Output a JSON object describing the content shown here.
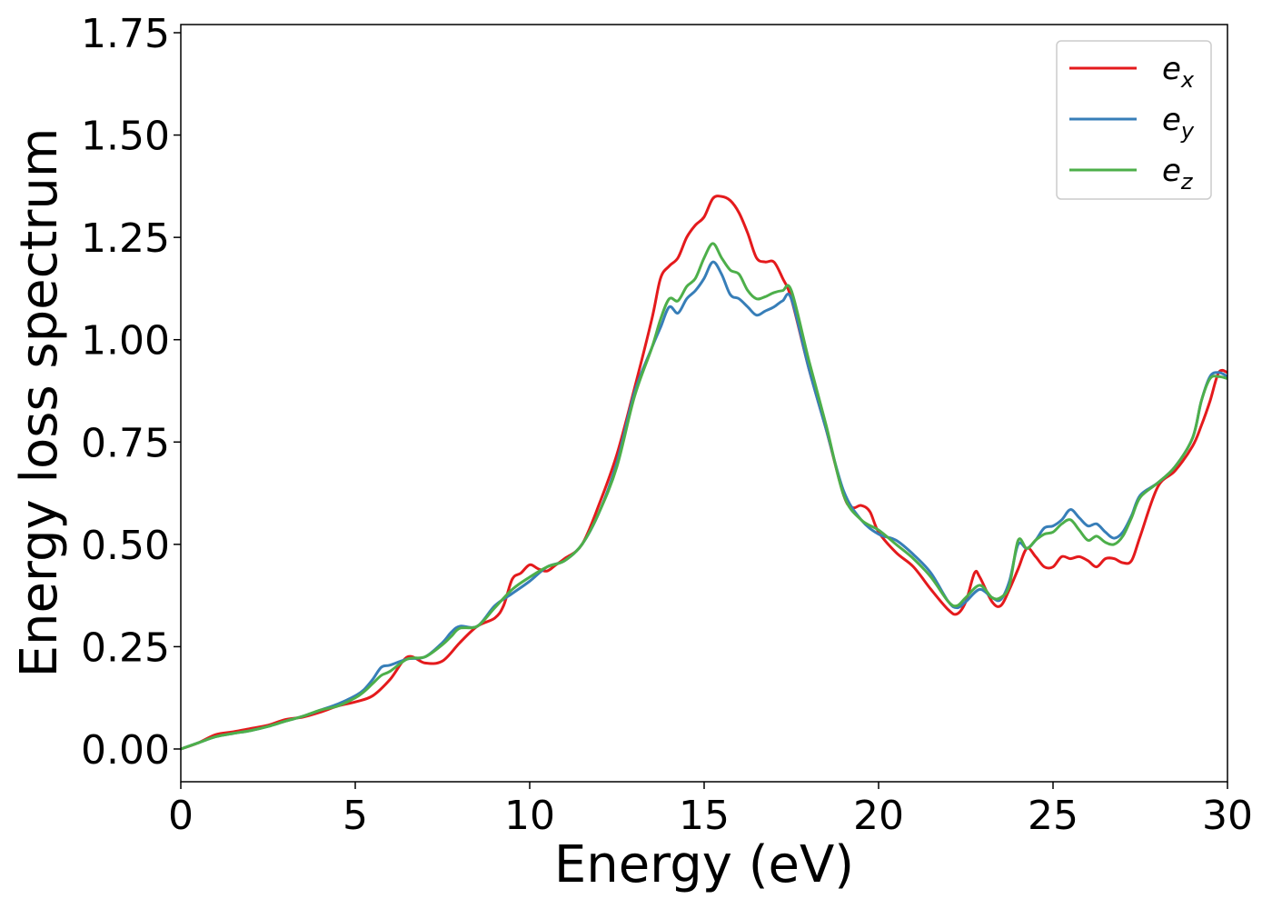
{
  "chart_data": {
    "type": "line",
    "title": "",
    "xlabel": "Energy (eV)",
    "ylabel": "Energy loss spectrum",
    "xlim": [
      0,
      30
    ],
    "ylim": [
      -0.08,
      1.77
    ],
    "xticks": [
      0,
      5,
      10,
      15,
      20,
      25,
      30
    ],
    "xtick_labels": [
      "0",
      "5",
      "10",
      "15",
      "20",
      "25",
      "30"
    ],
    "yticks": [
      0,
      0.25,
      0.5,
      0.75,
      1.0,
      1.25,
      1.5,
      1.75
    ],
    "ytick_labels": [
      "0.00",
      "0.25",
      "0.50",
      "0.75",
      "1.00",
      "1.25",
      "1.50",
      "1.75"
    ],
    "grid": false,
    "legend_position": "top-right",
    "series": [
      {
        "name": "e_x",
        "label_base": "e",
        "label_sub": "x",
        "color": "#e41a1c",
        "x": [
          0,
          0.5,
          1,
          1.5,
          2,
          2.5,
          3,
          3.5,
          4,
          4.5,
          5,
          5.5,
          6,
          6.5,
          7,
          7.5,
          8,
          8.5,
          9,
          9.25,
          9.5,
          9.75,
          10,
          10.25,
          10.5,
          10.75,
          11,
          11.5,
          12,
          12.5,
          13,
          13.5,
          13.75,
          14,
          14.25,
          14.5,
          14.75,
          15,
          15.25,
          15.5,
          15.75,
          16,
          16.25,
          16.5,
          16.75,
          17,
          17.25,
          17.5,
          18,
          18.5,
          19,
          19.25,
          19.5,
          19.75,
          20,
          20.5,
          21,
          21.5,
          22,
          22.25,
          22.5,
          22.75,
          22.9,
          23.25,
          23.5,
          23.75,
          24,
          24.25,
          24.5,
          24.75,
          25,
          25.25,
          25.5,
          25.75,
          26,
          26.25,
          26.5,
          26.75,
          27,
          27.25,
          27.5,
          28,
          28.5,
          29,
          29.25,
          29.5,
          29.75,
          30
        ],
        "values": [
          0,
          0.015,
          0.035,
          0.042,
          0.05,
          0.058,
          0.072,
          0.078,
          0.09,
          0.105,
          0.115,
          0.13,
          0.17,
          0.225,
          0.21,
          0.215,
          0.26,
          0.3,
          0.32,
          0.35,
          0.415,
          0.43,
          0.45,
          0.44,
          0.435,
          0.45,
          0.465,
          0.5,
          0.6,
          0.72,
          0.88,
          1.05,
          1.15,
          1.18,
          1.2,
          1.25,
          1.28,
          1.3,
          1.345,
          1.35,
          1.34,
          1.31,
          1.26,
          1.2,
          1.19,
          1.19,
          1.15,
          1.1,
          0.93,
          0.78,
          0.62,
          0.59,
          0.595,
          0.58,
          0.53,
          0.48,
          0.445,
          0.39,
          0.34,
          0.33,
          0.36,
          0.43,
          0.42,
          0.36,
          0.35,
          0.39,
          0.44,
          0.49,
          0.47,
          0.445,
          0.445,
          0.47,
          0.465,
          0.47,
          0.46,
          0.445,
          0.465,
          0.465,
          0.455,
          0.46,
          0.52,
          0.64,
          0.68,
          0.74,
          0.79,
          0.85,
          0.92,
          0.92
        ]
      },
      {
        "name": "e_y",
        "label_base": "e",
        "label_sub": "y",
        "color": "#377eb8",
        "x": [
          0,
          0.5,
          1,
          1.5,
          2,
          2.5,
          3,
          3.5,
          4,
          4.5,
          5,
          5.25,
          5.5,
          5.75,
          6,
          6.5,
          7,
          7.5,
          7.75,
          8,
          8.5,
          9,
          9.5,
          10,
          10.5,
          11,
          11.5,
          12,
          12.5,
          13,
          13.5,
          13.75,
          14,
          14.25,
          14.5,
          14.75,
          15,
          15.25,
          15.5,
          15.75,
          16,
          16.25,
          16.5,
          16.75,
          17,
          17.25,
          17.5,
          18,
          18.5,
          19,
          19.5,
          20,
          20.5,
          21,
          21.5,
          22,
          22.25,
          22.5,
          22.9,
          23.25,
          23.5,
          23.75,
          24,
          24.25,
          24.5,
          24.75,
          25,
          25.25,
          25.5,
          25.75,
          26,
          26.25,
          26.5,
          26.75,
          27,
          27.25,
          27.5,
          28,
          28.5,
          29,
          29.25,
          29.5,
          29.75,
          30
        ],
        "values": [
          0,
          0.015,
          0.03,
          0.038,
          0.045,
          0.055,
          0.068,
          0.08,
          0.095,
          0.11,
          0.13,
          0.145,
          0.17,
          0.2,
          0.205,
          0.22,
          0.225,
          0.26,
          0.285,
          0.3,
          0.3,
          0.35,
          0.38,
          0.41,
          0.445,
          0.46,
          0.5,
          0.58,
          0.7,
          0.87,
          0.98,
          1.03,
          1.08,
          1.065,
          1.1,
          1.12,
          1.15,
          1.19,
          1.16,
          1.11,
          1.1,
          1.08,
          1.06,
          1.07,
          1.08,
          1.095,
          1.1,
          0.93,
          0.78,
          0.63,
          0.56,
          0.525,
          0.51,
          0.475,
          0.43,
          0.36,
          0.345,
          0.36,
          0.39,
          0.37,
          0.365,
          0.41,
          0.5,
          0.49,
          0.51,
          0.54,
          0.545,
          0.56,
          0.585,
          0.565,
          0.545,
          0.55,
          0.53,
          0.515,
          0.53,
          0.57,
          0.62,
          0.65,
          0.69,
          0.76,
          0.85,
          0.91,
          0.92,
          0.91
        ]
      },
      {
        "name": "e_z",
        "label_base": "e",
        "label_sub": "z",
        "color": "#4daf4a",
        "x": [
          0,
          0.5,
          1,
          1.5,
          2,
          2.5,
          3,
          3.5,
          4,
          4.5,
          5,
          5.25,
          5.5,
          5.75,
          6,
          6.5,
          7,
          7.5,
          7.75,
          8,
          8.5,
          9,
          9.5,
          10,
          10.5,
          11,
          11.5,
          12,
          12.5,
          13,
          13.5,
          13.75,
          14,
          14.25,
          14.5,
          14.75,
          15,
          15.25,
          15.5,
          15.75,
          16,
          16.25,
          16.5,
          16.75,
          17,
          17.25,
          17.5,
          18,
          18.5,
          19,
          19.5,
          20,
          20.5,
          21,
          21.5,
          22,
          22.25,
          22.5,
          22.9,
          23.25,
          23.5,
          23.75,
          24,
          24.25,
          24.5,
          24.75,
          25,
          25.25,
          25.5,
          25.75,
          26,
          26.25,
          26.5,
          26.75,
          27,
          27.25,
          27.5,
          28,
          28.5,
          29,
          29.25,
          29.5,
          29.75,
          30
        ],
        "values": [
          0,
          0.015,
          0.03,
          0.038,
          0.045,
          0.055,
          0.068,
          0.08,
          0.095,
          0.105,
          0.125,
          0.14,
          0.16,
          0.18,
          0.19,
          0.22,
          0.225,
          0.255,
          0.275,
          0.295,
          0.3,
          0.345,
          0.39,
          0.42,
          0.445,
          0.46,
          0.5,
          0.58,
          0.69,
          0.86,
          0.98,
          1.05,
          1.1,
          1.095,
          1.13,
          1.15,
          1.2,
          1.235,
          1.2,
          1.17,
          1.16,
          1.12,
          1.1,
          1.105,
          1.115,
          1.12,
          1.12,
          0.95,
          0.79,
          0.62,
          0.56,
          0.535,
          0.5,
          0.465,
          0.42,
          0.36,
          0.35,
          0.37,
          0.4,
          0.37,
          0.37,
          0.4,
          0.51,
          0.49,
          0.51,
          0.525,
          0.53,
          0.55,
          0.56,
          0.535,
          0.51,
          0.52,
          0.505,
          0.5,
          0.52,
          0.565,
          0.615,
          0.65,
          0.69,
          0.76,
          0.85,
          0.905,
          0.91,
          0.905
        ]
      }
    ]
  }
}
